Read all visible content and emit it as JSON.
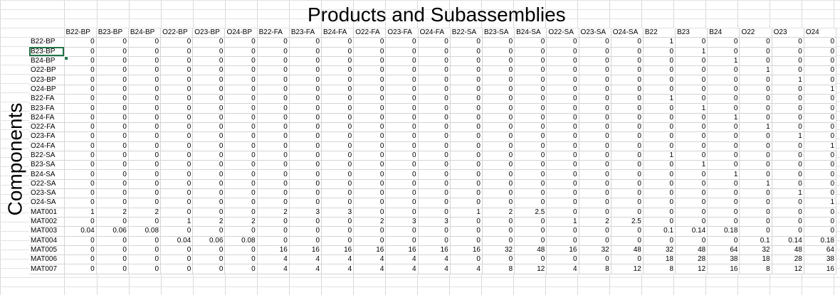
{
  "sheet": {
    "title": "Products and Subassemblies",
    "row_axis_label": "Components",
    "selected_cell": "B23-BP",
    "columns": [
      "B22-BP",
      "B23-BP",
      "B24-BP",
      "O22-BP",
      "O23-BP",
      "O24-BP",
      "B22-FA",
      "B23-FA",
      "B24-FA",
      "O22-FA",
      "O23-FA",
      "O24-FA",
      "B22-SA",
      "B23-SA",
      "B24-SA",
      "O22-SA",
      "O23-SA",
      "O24-SA",
      "B22",
      "B23",
      "B24",
      "O22",
      "O23",
      "O24"
    ],
    "rows": [
      {
        "label": "B22-BP",
        "values": [
          "0",
          "0",
          "0",
          "0",
          "0",
          "0",
          "0",
          "0",
          "0",
          "0",
          "0",
          "0",
          "0",
          "0",
          "0",
          "0",
          "0",
          "0",
          "1",
          "0",
          "0",
          "0",
          "0",
          "0"
        ]
      },
      {
        "label": "B23-BP",
        "values": [
          "0",
          "0",
          "0",
          "0",
          "0",
          "0",
          "0",
          "0",
          "0",
          "0",
          "0",
          "0",
          "0",
          "0",
          "0",
          "0",
          "0",
          "0",
          "0",
          "1",
          "0",
          "0",
          "0",
          "0"
        ]
      },
      {
        "label": "B24-BP",
        "values": [
          "0",
          "0",
          "0",
          "0",
          "0",
          "0",
          "0",
          "0",
          "0",
          "0",
          "0",
          "0",
          "0",
          "0",
          "0",
          "0",
          "0",
          "0",
          "0",
          "0",
          "1",
          "0",
          "0",
          "0"
        ]
      },
      {
        "label": "O22-BP",
        "values": [
          "0",
          "0",
          "0",
          "0",
          "0",
          "0",
          "0",
          "0",
          "0",
          "0",
          "0",
          "0",
          "0",
          "0",
          "0",
          "0",
          "0",
          "0",
          "0",
          "0",
          "0",
          "1",
          "0",
          "0"
        ]
      },
      {
        "label": "O23-BP",
        "values": [
          "0",
          "0",
          "0",
          "0",
          "0",
          "0",
          "0",
          "0",
          "0",
          "0",
          "0",
          "0",
          "0",
          "0",
          "0",
          "0",
          "0",
          "0",
          "0",
          "0",
          "0",
          "0",
          "1",
          "0"
        ]
      },
      {
        "label": "O24-BP",
        "values": [
          "0",
          "0",
          "0",
          "0",
          "0",
          "0",
          "0",
          "0",
          "0",
          "0",
          "0",
          "0",
          "0",
          "0",
          "0",
          "0",
          "0",
          "0",
          "0",
          "0",
          "0",
          "0",
          "0",
          "1"
        ]
      },
      {
        "label": "B22-FA",
        "values": [
          "0",
          "0",
          "0",
          "0",
          "0",
          "0",
          "0",
          "0",
          "0",
          "0",
          "0",
          "0",
          "0",
          "0",
          "0",
          "0",
          "0",
          "0",
          "1",
          "0",
          "0",
          "0",
          "0",
          "0"
        ]
      },
      {
        "label": "B23-FA",
        "values": [
          "0",
          "0",
          "0",
          "0",
          "0",
          "0",
          "0",
          "0",
          "0",
          "0",
          "0",
          "0",
          "0",
          "0",
          "0",
          "0",
          "0",
          "0",
          "0",
          "1",
          "0",
          "0",
          "0",
          "0"
        ]
      },
      {
        "label": "B24-FA",
        "values": [
          "0",
          "0",
          "0",
          "0",
          "0",
          "0",
          "0",
          "0",
          "0",
          "0",
          "0",
          "0",
          "0",
          "0",
          "0",
          "0",
          "0",
          "0",
          "0",
          "0",
          "1",
          "0",
          "0",
          "0"
        ]
      },
      {
        "label": "O22-FA",
        "values": [
          "0",
          "0",
          "0",
          "0",
          "0",
          "0",
          "0",
          "0",
          "0",
          "0",
          "0",
          "0",
          "0",
          "0",
          "0",
          "0",
          "0",
          "0",
          "0",
          "0",
          "0",
          "1",
          "0",
          "0"
        ]
      },
      {
        "label": "O23-FA",
        "values": [
          "0",
          "0",
          "0",
          "0",
          "0",
          "0",
          "0",
          "0",
          "0",
          "0",
          "0",
          "0",
          "0",
          "0",
          "0",
          "0",
          "0",
          "0",
          "0",
          "0",
          "0",
          "0",
          "1",
          "0"
        ]
      },
      {
        "label": "O24-FA",
        "values": [
          "0",
          "0",
          "0",
          "0",
          "0",
          "0",
          "0",
          "0",
          "0",
          "0",
          "0",
          "0",
          "0",
          "0",
          "0",
          "0",
          "0",
          "0",
          "0",
          "0",
          "0",
          "0",
          "0",
          "1"
        ]
      },
      {
        "label": "B22-SA",
        "values": [
          "0",
          "0",
          "0",
          "0",
          "0",
          "0",
          "0",
          "0",
          "0",
          "0",
          "0",
          "0",
          "0",
          "0",
          "0",
          "0",
          "0",
          "0",
          "1",
          "0",
          "0",
          "0",
          "0",
          "0"
        ]
      },
      {
        "label": "B23-SA",
        "values": [
          "0",
          "0",
          "0",
          "0",
          "0",
          "0",
          "0",
          "0",
          "0",
          "0",
          "0",
          "0",
          "0",
          "0",
          "0",
          "0",
          "0",
          "0",
          "0",
          "1",
          "0",
          "0",
          "0",
          "0"
        ]
      },
      {
        "label": "B24-SA",
        "values": [
          "0",
          "0",
          "0",
          "0",
          "0",
          "0",
          "0",
          "0",
          "0",
          "0",
          "0",
          "0",
          "0",
          "0",
          "0",
          "0",
          "0",
          "0",
          "0",
          "0",
          "1",
          "0",
          "0",
          "0"
        ]
      },
      {
        "label": "O22-SA",
        "values": [
          "0",
          "0",
          "0",
          "0",
          "0",
          "0",
          "0",
          "0",
          "0",
          "0",
          "0",
          "0",
          "0",
          "0",
          "0",
          "0",
          "0",
          "0",
          "0",
          "0",
          "0",
          "1",
          "0",
          "0"
        ]
      },
      {
        "label": "O23-SA",
        "values": [
          "0",
          "0",
          "0",
          "0",
          "0",
          "0",
          "0",
          "0",
          "0",
          "0",
          "0",
          "0",
          "0",
          "0",
          "0",
          "0",
          "0",
          "0",
          "0",
          "0",
          "0",
          "0",
          "1",
          "0"
        ]
      },
      {
        "label": "O24-SA",
        "values": [
          "0",
          "0",
          "0",
          "0",
          "0",
          "0",
          "0",
          "0",
          "0",
          "0",
          "0",
          "0",
          "0",
          "0",
          "0",
          "0",
          "0",
          "0",
          "0",
          "0",
          "0",
          "0",
          "0",
          "1"
        ]
      },
      {
        "label": "MAT001",
        "values": [
          "1",
          "2",
          "2",
          "0",
          "0",
          "0",
          "2",
          "3",
          "3",
          "0",
          "0",
          "0",
          "1",
          "2",
          "2.5",
          "0",
          "0",
          "0",
          "0",
          "0",
          "0",
          "0",
          "0",
          "0"
        ]
      },
      {
        "label": "MAT002",
        "values": [
          "0",
          "0",
          "0",
          "1",
          "2",
          "2",
          "0",
          "0",
          "0",
          "2",
          "3",
          "3",
          "0",
          "0",
          "0",
          "1",
          "2",
          "2.5",
          "0",
          "0",
          "0",
          "0",
          "0",
          "0"
        ]
      },
      {
        "label": "MAT003",
        "values": [
          "0.04",
          "0.06",
          "0.08",
          "0",
          "0",
          "0",
          "0",
          "0",
          "0",
          "0",
          "0",
          "0",
          "0",
          "0",
          "0",
          "0",
          "0",
          "0",
          "0.1",
          "0.14",
          "0.18",
          "0",
          "0",
          "0"
        ]
      },
      {
        "label": "MAT004",
        "values": [
          "0",
          "0",
          "0",
          "0.04",
          "0.06",
          "0.08",
          "0",
          "0",
          "0",
          "0",
          "0",
          "0",
          "0",
          "0",
          "0",
          "0",
          "0",
          "0",
          "0",
          "0",
          "0",
          "0.1",
          "0.14",
          "0.18"
        ]
      },
      {
        "label": "MAT005",
        "values": [
          "0",
          "0",
          "0",
          "0",
          "0",
          "0",
          "16",
          "16",
          "16",
          "16",
          "16",
          "16",
          "16",
          "32",
          "48",
          "16",
          "32",
          "48",
          "32",
          "48",
          "64",
          "32",
          "48",
          "64"
        ]
      },
      {
        "label": "MAT006",
        "values": [
          "0",
          "0",
          "0",
          "0",
          "0",
          "0",
          "4",
          "4",
          "4",
          "4",
          "4",
          "4",
          "0",
          "0",
          "0",
          "0",
          "0",
          "0",
          "18",
          "28",
          "38",
          "18",
          "28",
          "38"
        ]
      },
      {
        "label": "MAT007",
        "values": [
          "0",
          "0",
          "0",
          "0",
          "0",
          "0",
          "4",
          "4",
          "4",
          "4",
          "4",
          "4",
          "4",
          "8",
          "12",
          "4",
          "8",
          "12",
          "8",
          "12",
          "16",
          "8",
          "12",
          "16"
        ]
      }
    ]
  }
}
